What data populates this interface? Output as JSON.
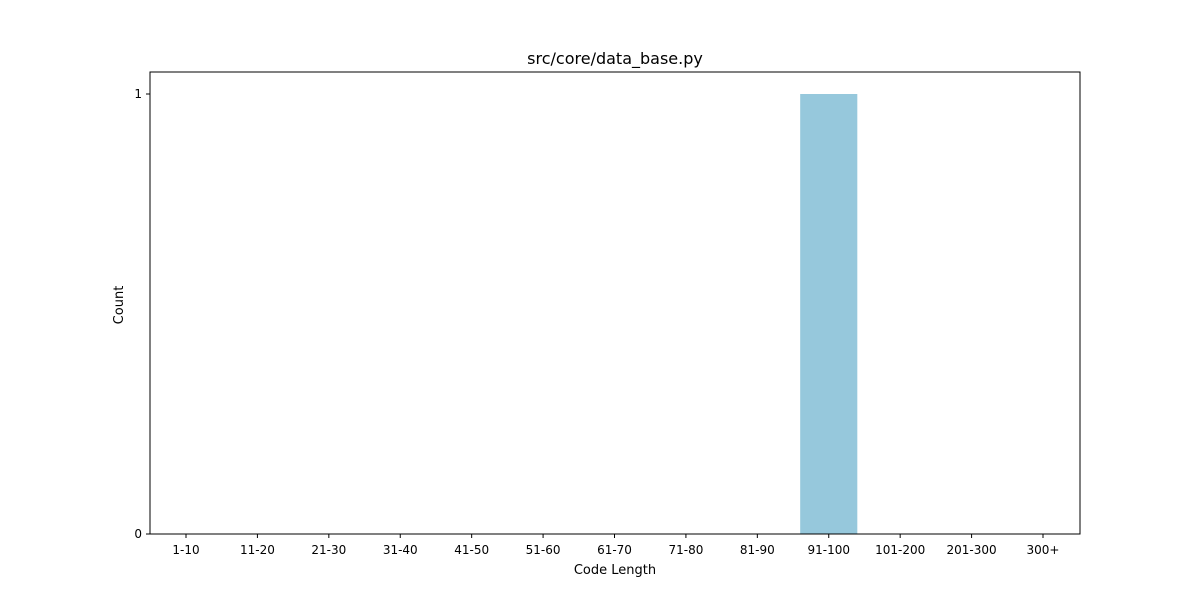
{
  "chart_data": {
    "type": "bar",
    "title": "src/core/data_base.py",
    "xlabel": "Code Length",
    "ylabel": "Count",
    "categories": [
      "1-10",
      "11-20",
      "21-30",
      "31-40",
      "41-50",
      "51-60",
      "61-70",
      "71-80",
      "81-90",
      "91-100",
      "101-200",
      "201-300",
      "300+"
    ],
    "values": [
      0,
      0,
      0,
      0,
      0,
      0,
      0,
      0,
      0,
      1,
      0,
      0,
      0
    ],
    "ylim": [
      0,
      1
    ],
    "yticks": [
      0,
      1
    ],
    "bar_color": "#96c8dc",
    "grid": false,
    "legend": "none"
  }
}
